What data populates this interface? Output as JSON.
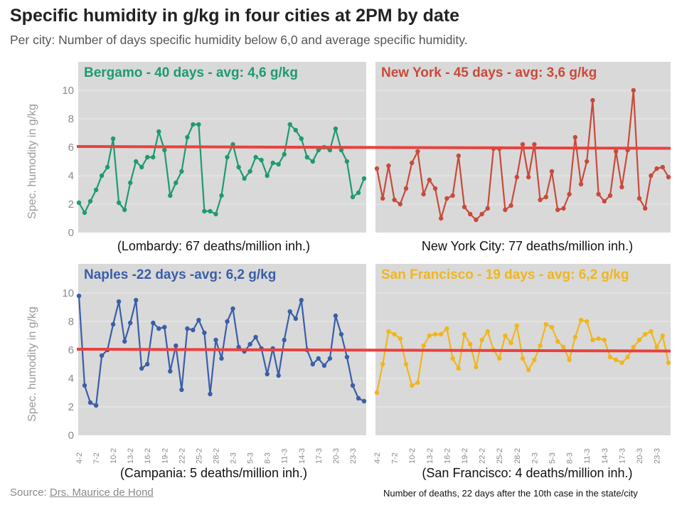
{
  "header": {
    "title": "Specific humidity in g/kg in four cities at 2PM by date",
    "subtitle": "Per city: Number of days specific humidity below 6,0 and average specific humidity."
  },
  "footer": {
    "source_prefix": "Source: ",
    "source_link": "Drs. Maurice de Hond",
    "note": "Number of deaths, 22 days after the 10th case in the state/city"
  },
  "colors": {
    "panel_bg": "#d9d9d9",
    "header_bg": "#d9d9d9",
    "threshold_line": "#e8413f",
    "bergamo": "#1e9b6e",
    "new_york": "#c94a3a",
    "naples": "#3a5ea8",
    "san_francisco": "#f0b61c"
  },
  "chart_data": {
    "type": "line",
    "ylabel": "Spec. humodity in g/kg",
    "ylim": [
      0,
      10
    ],
    "yticks": [
      "0",
      "2",
      "4",
      "6",
      "8",
      "10"
    ],
    "threshold": 6,
    "x_ticks": [
      "4-2",
      "7-2",
      "10-2",
      "13-2",
      "16-2",
      "19-2",
      "22-2",
      "25-2",
      "28-2",
      "2-3",
      "5-3",
      "8-3",
      "11-3",
      "14-3",
      "17-3",
      "20-3",
      "23-3"
    ],
    "panels": [
      {
        "id": "bergamo",
        "title": "Bergamo - 40 days - avg: 4,6 g/kg",
        "caption": "(Lombardy: 67 deaths/million inh.)",
        "color": "#1e9b6e",
        "values": [
          2.1,
          1.4,
          2.2,
          3.0,
          4.0,
          4.6,
          6.6,
          2.1,
          1.6,
          3.5,
          5.0,
          4.6,
          5.3,
          5.3,
          7.1,
          5.8,
          2.6,
          3.5,
          4.3,
          6.7,
          7.6,
          7.6,
          1.5,
          1.5,
          1.3,
          2.6,
          5.3,
          6.2,
          4.6,
          3.8,
          4.3,
          5.3,
          5.1,
          4.0,
          4.9,
          4.8,
          5.5,
          7.6,
          7.2,
          6.6,
          5.3,
          5.0,
          5.8,
          6.0,
          5.8,
          7.3,
          5.8,
          5.0,
          2.5,
          2.8,
          3.8
        ]
      },
      {
        "id": "new_york",
        "title": "New York - 45 days - avg: 3,6 g/kg",
        "caption": "New York City: 77 deaths/million inh.)",
        "color": "#c94a3a",
        "values": [
          4.5,
          2.4,
          4.7,
          2.3,
          2.0,
          3.1,
          4.9,
          5.7,
          2.7,
          3.7,
          3.1,
          1.0,
          2.4,
          2.6,
          5.4,
          1.8,
          1.3,
          0.9,
          1.3,
          1.7,
          5.9,
          5.9,
          1.6,
          1.9,
          3.9,
          6.2,
          3.9,
          6.2,
          2.3,
          2.5,
          4.3,
          1.6,
          1.7,
          2.7,
          6.7,
          3.4,
          5.0,
          9.3,
          2.7,
          2.2,
          2.6,
          5.7,
          3.2,
          5.8,
          10.0,
          2.4,
          1.7,
          4.0,
          4.5,
          4.6,
          3.9
        ]
      },
      {
        "id": "naples",
        "title": "Naples -22 days -avg: 6,2 g/kg",
        "caption": "(Campania: 5 deaths/million inh.)",
        "color": "#3a5ea8",
        "values": [
          9.8,
          3.5,
          2.3,
          2.1,
          5.6,
          6.0,
          7.8,
          9.4,
          6.6,
          7.9,
          9.5,
          4.7,
          5.0,
          7.9,
          7.5,
          7.6,
          4.5,
          6.3,
          3.2,
          7.5,
          7.4,
          8.1,
          7.2,
          2.9,
          6.7,
          5.4,
          8.0,
          8.9,
          6.2,
          5.9,
          6.4,
          6.9,
          6.1,
          4.3,
          6.1,
          4.2,
          6.7,
          8.7,
          8.2,
          9.5,
          6.0,
          5.0,
          5.4,
          4.9,
          5.4,
          8.4,
          7.1,
          5.5,
          3.5,
          2.6,
          2.4
        ]
      },
      {
        "id": "san_francisco",
        "title": "San Francisco - 19 days - avg: 6,2 g/kg",
        "caption": "(San Francisco: 4 deaths/million inh.)",
        "color": "#f0b61c",
        "values": [
          3.0,
          5.0,
          7.3,
          7.1,
          6.8,
          5.0,
          3.5,
          3.7,
          6.3,
          7.0,
          7.1,
          7.1,
          7.5,
          5.4,
          4.7,
          7.1,
          6.4,
          4.8,
          6.7,
          7.3,
          6.0,
          5.4,
          7.0,
          6.5,
          7.7,
          5.4,
          4.6,
          5.3,
          6.3,
          7.8,
          7.6,
          6.6,
          6.2,
          5.3,
          6.9,
          8.1,
          8.0,
          6.7,
          6.8,
          6.7,
          5.5,
          5.3,
          5.1,
          5.5,
          6.2,
          6.7,
          7.1,
          7.3,
          6.2,
          7.0,
          5.1
        ]
      }
    ]
  }
}
